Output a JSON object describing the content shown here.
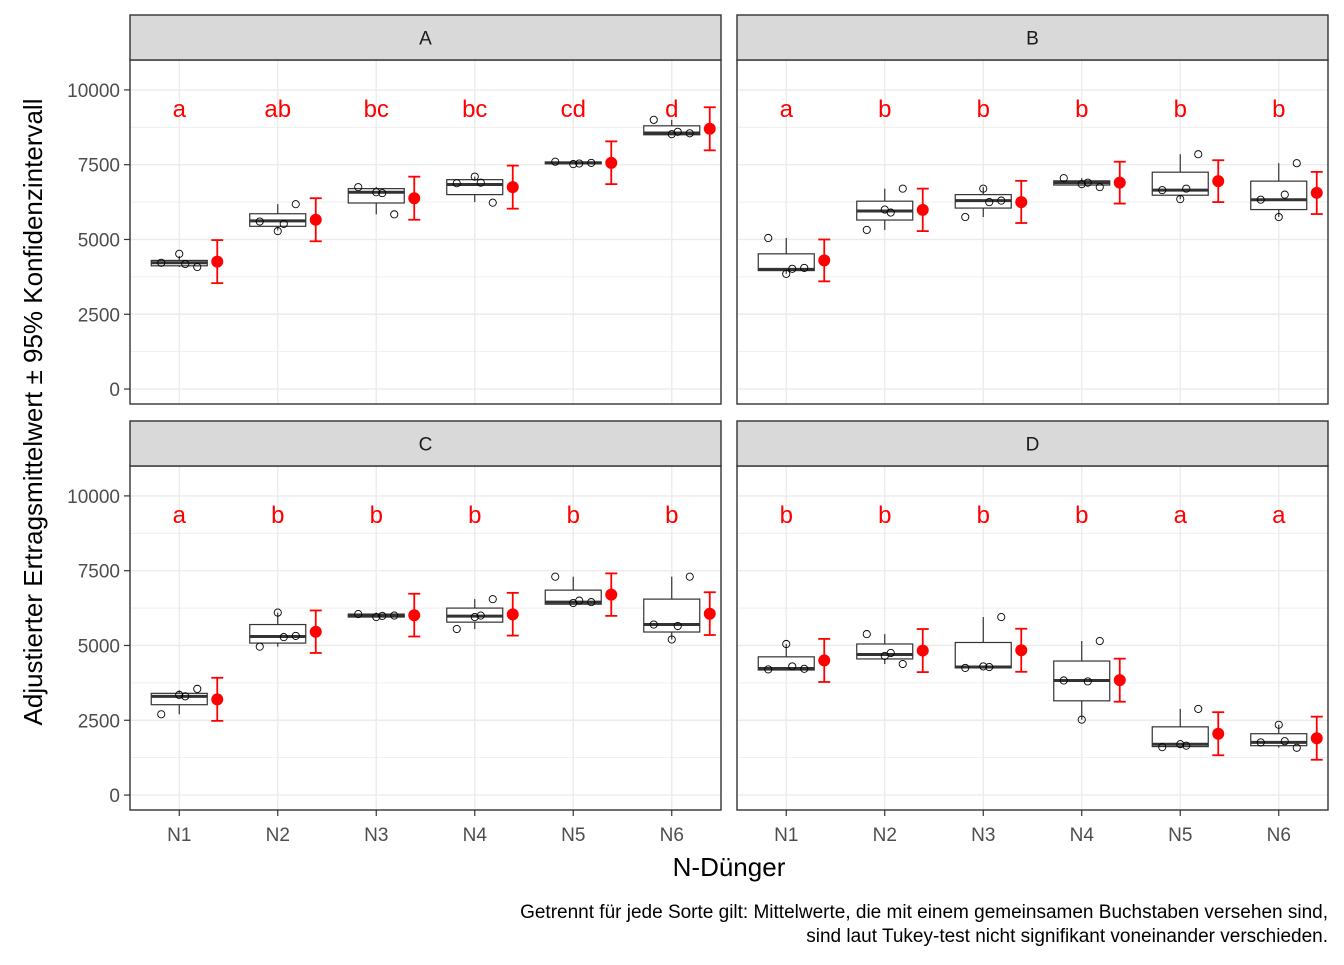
{
  "chart_data": {
    "type": "boxplot",
    "facets": [
      "A",
      "B",
      "C",
      "D"
    ],
    "categories": [
      "N1",
      "N2",
      "N3",
      "N4",
      "N5",
      "N6"
    ],
    "xlabel": "N-Dünger",
    "ylabel": "Adjustierter Ertragsmittelwert ± 95% Konfidenzintervall",
    "ylim": [
      -500,
      11000
    ],
    "yticks": [
      0,
      2500,
      5000,
      7500,
      10000
    ],
    "ytick_labels": [
      "0",
      "2500",
      "5000",
      "7500",
      "10000"
    ],
    "caption": [
      "Getrennt für jede Sorte gilt: Mittelwerte, die mit einem gemeinsamen Buchstaben versehen sind,",
      "sind laut Tukey-test nicht signifikant voneinander verschieden."
    ],
    "colors": {
      "mean": "#ff0000",
      "letters": "#ff0000",
      "strip": "#d9d9d9",
      "grid": "#ebebeb",
      "box": "#333333"
    },
    "panels": [
      {
        "facet": "A",
        "letters": [
          "a",
          "ab",
          "bc",
          "bc",
          "cd",
          "d"
        ],
        "boxes": [
          {
            "q1": 4120,
            "median": 4220,
            "q3": 4300,
            "wlo": 4080,
            "whi": 4450
          },
          {
            "q1": 5440,
            "median": 5620,
            "q3": 5860,
            "wlo": 5300,
            "whi": 6180
          },
          {
            "q1": 6220,
            "median": 6580,
            "q3": 6700,
            "wlo": 5840,
            "whi": 6760
          },
          {
            "q1": 6500,
            "median": 6840,
            "q3": 7000,
            "wlo": 6250,
            "whi": 7100
          },
          {
            "q1": 7530,
            "median": 7560,
            "q3": 7590,
            "wlo": 7530,
            "whi": 7600
          },
          {
            "q1": 8500,
            "median": 8560,
            "q3": 8800,
            "wlo": 8500,
            "whi": 9000
          }
        ],
        "points": [
          [
            4220,
            4520,
            4080,
            4180
          ],
          [
            5600,
            5280,
            6180,
            5520
          ],
          [
            6750,
            6580,
            5840,
            6550
          ],
          [
            6880,
            7100,
            6230,
            6900
          ],
          [
            7600,
            7520,
            7560,
            7540
          ],
          [
            9000,
            8520,
            8550,
            8600
          ]
        ],
        "means": [
          4260,
          5660,
          6380,
          6750,
          7560,
          8700
        ],
        "ci_low": [
          3540,
          4940,
          5660,
          6030,
          6850,
          7980
        ],
        "ci_high": [
          4980,
          6380,
          7100,
          7470,
          8280,
          9420
        ]
      },
      {
        "facet": "B",
        "letters": [
          "a",
          "b",
          "b",
          "b",
          "b",
          "b"
        ],
        "boxes": [
          {
            "q1": 3960,
            "median": 4000,
            "q3": 4520,
            "wlo": 3850,
            "whi": 5050
          },
          {
            "q1": 5650,
            "median": 5950,
            "q3": 6280,
            "wlo": 5320,
            "whi": 6700
          },
          {
            "q1": 6050,
            "median": 6300,
            "q3": 6500,
            "wlo": 5750,
            "whi": 6750
          },
          {
            "q1": 6820,
            "median": 6900,
            "q3": 6960,
            "wlo": 6800,
            "whi": 7050
          },
          {
            "q1": 6480,
            "median": 6650,
            "q3": 7250,
            "wlo": 6350,
            "whi": 7850
          },
          {
            "q1": 6000,
            "median": 6330,
            "q3": 6950,
            "wlo": 5750,
            "whi": 7550
          }
        ],
        "points": [
          [
            5050,
            3850,
            4050,
            4020
          ],
          [
            5320,
            6000,
            6700,
            5900
          ],
          [
            5750,
            6700,
            6300,
            6250
          ],
          [
            7050,
            6850,
            6750,
            6900
          ],
          [
            6650,
            6350,
            7850,
            6700
          ],
          [
            6330,
            5750,
            7550,
            6500
          ]
        ],
        "means": [
          4300,
          5990,
          6250,
          6900,
          6950,
          6560
        ],
        "ci_low": [
          3600,
          5280,
          5550,
          6200,
          6250,
          5850
        ],
        "ci_high": [
          5000,
          6700,
          6960,
          7600,
          7650,
          7260
        ]
      },
      {
        "facet": "C",
        "letters": [
          "a",
          "b",
          "b",
          "b",
          "b",
          "b"
        ],
        "boxes": [
          {
            "q1": 3020,
            "median": 3300,
            "q3": 3400,
            "wlo": 2700,
            "whi": 3500
          },
          {
            "q1": 5080,
            "median": 5300,
            "q3": 5700,
            "wlo": 4960,
            "whi": 6100
          },
          {
            "q1": 5950,
            "median": 6000,
            "q3": 6050,
            "wlo": 5950,
            "whi": 6100
          },
          {
            "q1": 5780,
            "median": 5980,
            "q3": 6250,
            "wlo": 5550,
            "whi": 6550
          },
          {
            "q1": 6380,
            "median": 6450,
            "q3": 6850,
            "wlo": 6380,
            "whi": 7300
          },
          {
            "q1": 5450,
            "median": 5700,
            "q3": 6550,
            "wlo": 5200,
            "whi": 7300
          }
        ],
        "points": [
          [
            2700,
            3350,
            3550,
            3300
          ],
          [
            4960,
            6100,
            5320,
            5280
          ],
          [
            6050,
            5950,
            6000,
            5990
          ],
          [
            5550,
            5950,
            6550,
            6000
          ],
          [
            7300,
            6420,
            6450,
            6500
          ],
          [
            5700,
            5200,
            7300,
            5650
          ]
        ],
        "means": [
          3200,
          5460,
          6010,
          6040,
          6700,
          6060
        ],
        "ci_low": [
          2480,
          4750,
          5300,
          5330,
          5990,
          5350
        ],
        "ci_high": [
          3920,
          6170,
          6730,
          6760,
          7410,
          6780
        ]
      },
      {
        "facet": "D",
        "letters": [
          "b",
          "b",
          "b",
          "b",
          "a",
          "a"
        ],
        "boxes": [
          {
            "q1": 4180,
            "median": 4230,
            "q3": 4620,
            "wlo": 4180,
            "whi": 5050
          },
          {
            "q1": 4550,
            "median": 4700,
            "q3": 5050,
            "wlo": 4380,
            "whi": 5380
          },
          {
            "q1": 4250,
            "median": 4280,
            "q3": 5100,
            "wlo": 4250,
            "whi": 5950
          },
          {
            "q1": 3150,
            "median": 3830,
            "q3": 4480,
            "wlo": 2520,
            "whi": 5150
          },
          {
            "q1": 1620,
            "median": 1700,
            "q3": 2280,
            "wlo": 1580,
            "whi": 2880
          },
          {
            "q1": 1650,
            "median": 1760,
            "q3": 2050,
            "wlo": 1580,
            "whi": 2350
          }
        ],
        "points": [
          [
            4200,
            5050,
            4220,
            4300
          ],
          [
            5380,
            4650,
            4380,
            4750
          ],
          [
            4250,
            4300,
            5950,
            4280
          ],
          [
            3830,
            2520,
            5150,
            3800
          ],
          [
            1600,
            1700,
            2880,
            1650
          ],
          [
            1760,
            2350,
            1580,
            1800
          ]
        ],
        "means": [
          4500,
          4830,
          4840,
          3840,
          2050,
          1900
        ],
        "ci_low": [
          3780,
          4110,
          4120,
          3120,
          1330,
          1180
        ],
        "ci_high": [
          5220,
          5550,
          5560,
          4560,
          2770,
          2620
        ]
      }
    ]
  }
}
